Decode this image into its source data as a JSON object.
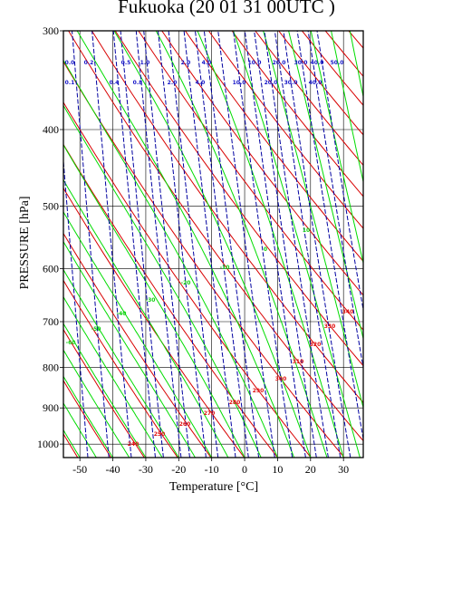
{
  "chart_data": {
    "type": "line",
    "diagram": "emagram",
    "title": "Fukuoka (20 01 31 00UTC )",
    "xlabel": "Temperature  [°C]",
    "ylabel": "PRESSURE [hPa]",
    "xlim": [
      -55,
      36
    ],
    "ylim": [
      1040,
      300
    ],
    "y_scale": "log",
    "x_ticks": [
      "-50",
      "-40",
      "-30",
      "-20",
      "-10",
      "0",
      "10",
      "20",
      "30"
    ],
    "x_tick_values": [
      -50,
      -40,
      -30,
      -20,
      -10,
      0,
      10,
      20,
      30
    ],
    "y_ticks": [
      "300",
      "400",
      "500",
      "600",
      "700",
      "800",
      "900",
      "1000"
    ],
    "y_tick_values": [
      300,
      400,
      500,
      600,
      700,
      800,
      900,
      1000
    ],
    "grid": true,
    "dry_adiabat_labels": [
      "240",
      "250",
      "260",
      "270",
      "280",
      "290",
      "300",
      "310",
      "320",
      "330",
      "340"
    ],
    "moist_adiabat_labels": [
      "-60",
      "-50",
      "-40",
      "-30",
      "-20",
      "-10",
      "0",
      "10",
      "20",
      "30",
      "40",
      "50"
    ],
    "mixing_ratio_labels_row1": [
      "0.0",
      "0.2",
      "0.5",
      "1.0",
      "2.0",
      "4.0",
      "10.0",
      "20.0",
      "30.0",
      "40.0",
      "50.0"
    ],
    "mixing_ratio_labels_row2": [
      "0.1",
      "0.4",
      "0.8",
      "2.0",
      "4.0",
      "10.0",
      "20.0",
      "30.0",
      "40.0"
    ],
    "colors": {
      "dry_adiabat": "#d80000",
      "moist_adiabat": "#00dc00",
      "mixing_ratio": "#0000a0",
      "grid": "#000000"
    }
  }
}
